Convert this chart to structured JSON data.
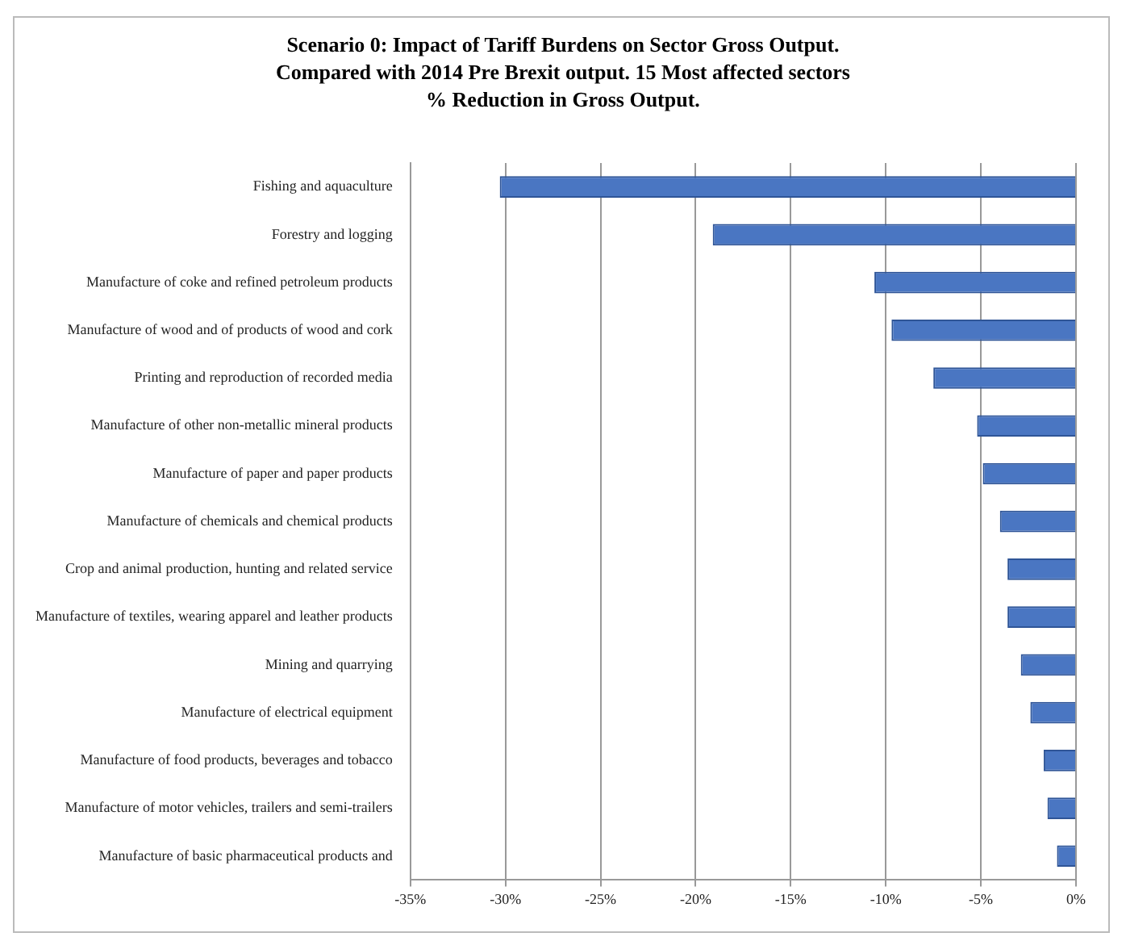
{
  "chart_data": {
    "type": "bar",
    "orientation": "horizontal",
    "title": "Scenario 0: Impact of Tariff Burdens on Sector Gross Output.\nCompared with 2014 Pre Brexit output. 15 Most affected sectors\n% Reduction in Gross Output.",
    "categories": [
      "Fishing and aquaculture",
      "Forestry and logging",
      "Manufacture of coke and refined petroleum products",
      "Manufacture of wood and of products of wood and cork",
      "Printing and reproduction of recorded media",
      "Manufacture of other non-metallic mineral products",
      "Manufacture of paper and paper products",
      "Manufacture of chemicals and chemical products",
      "Crop and animal production, hunting and related service",
      "Manufacture of textiles, wearing apparel and leather products",
      "Mining and quarrying",
      "Manufacture of electrical equipment",
      "Manufacture of food products, beverages and tobacco",
      "Manufacture of motor vehicles, trailers and semi-trailers",
      "Manufacture of basic pharmaceutical products and"
    ],
    "values": [
      -30.3,
      -19.1,
      -10.6,
      -9.7,
      -7.5,
      -5.2,
      -4.9,
      -4.0,
      -3.6,
      -3.6,
      -2.9,
      -2.4,
      -1.7,
      -1.5,
      -1.0
    ],
    "color": "#4a76c2",
    "xlim": [
      -35,
      0
    ],
    "xticks": [
      {
        "value": -35,
        "label": "-35%"
      },
      {
        "value": -30,
        "label": "-30%"
      },
      {
        "value": -25,
        "label": "-25%"
      },
      {
        "value": -20,
        "label": "-20%"
      },
      {
        "value": -15,
        "label": "-15%"
      },
      {
        "value": -10,
        "label": "-10%"
      },
      {
        "value": -5,
        "label": "-5%"
      },
      {
        "value": 0,
        "label": "0%"
      }
    ],
    "grid": "x",
    "legend": false
  }
}
